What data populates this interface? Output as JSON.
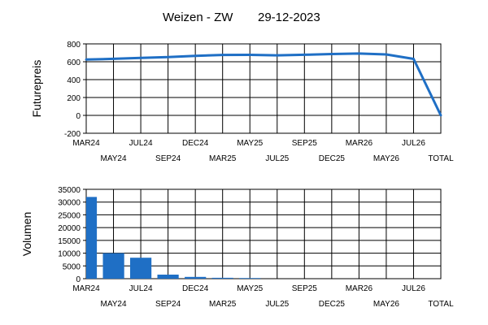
{
  "header": {
    "title": "Weizen - ZW",
    "date": "29-12-2023"
  },
  "colors": {
    "series": "#1f6fc5",
    "grid": "#000000",
    "background": "#ffffff"
  },
  "chart_data": [
    {
      "type": "line",
      "title": "Weizen - ZW 29-12-2023",
      "ylabel": "Futurepreis",
      "xlabel": "",
      "categories": [
        "MAR24",
        "MAY24",
        "JUL24",
        "SEP24",
        "DEC24",
        "MAR25",
        "MAY25",
        "JUL25",
        "SEP25",
        "DEC25",
        "MAR26",
        "MAY26",
        "JUL26",
        "TOTAL"
      ],
      "ylim": [
        -200,
        800
      ],
      "yticks": [
        800,
        600,
        400,
        200,
        0,
        -200
      ],
      "ytick_labels": [
        "800",
        "600",
        "400",
        "200",
        "0",
        "-200"
      ],
      "grid": true,
      "series": [
        {
          "values": [
            625,
            633,
            643,
            652,
            665,
            676,
            677,
            672,
            678,
            686,
            692,
            682,
            632,
            0
          ]
        }
      ]
    },
    {
      "type": "bar",
      "ylabel": "Volumen",
      "xlabel": "",
      "categories": [
        "MAR24",
        "MAY24",
        "JUL24",
        "SEP24",
        "DEC24",
        "MAR25",
        "MAY25",
        "JUL25",
        "SEP25",
        "DEC25",
        "MAR26",
        "MAY26",
        "JUL26",
        "TOTAL"
      ],
      "ylim": [
        0,
        35000
      ],
      "yticks": [
        35000,
        30000,
        25000,
        20000,
        15000,
        10000,
        5000,
        0
      ],
      "ytick_labels": [
        "35000",
        "30000",
        "25000",
        "20000",
        "15000",
        "10000",
        "5000",
        "0"
      ],
      "grid": true,
      "series": [
        {
          "values": [
            32000,
            10000,
            8200,
            1600,
            700,
            350,
            250,
            0,
            0,
            0,
            0,
            0,
            0,
            0
          ]
        }
      ]
    }
  ]
}
